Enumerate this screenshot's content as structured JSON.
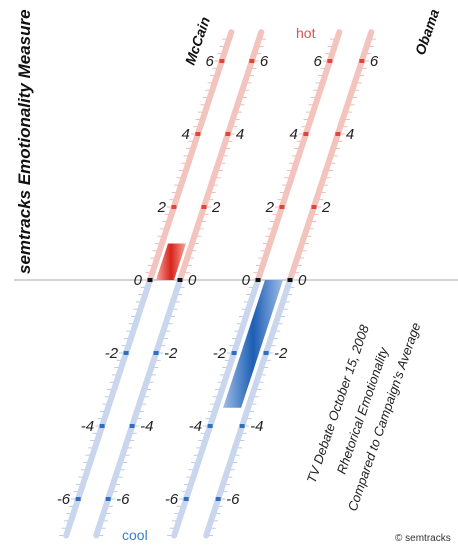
{
  "header": {
    "title": "semtracks Emotionality Measure",
    "hot_label": "hot",
    "cool_label": "cool"
  },
  "caption": {
    "line1": "TV Debate October 15, 2008",
    "line2": "Rhetorical Emotionality",
    "line3": "Compared to Campaign's Average"
  },
  "copyright": "© semtracks",
  "colors": {
    "hot": "#e0473a",
    "cool": "#2e6fc0",
    "hot_light": "#f3c3bd",
    "cool_light": "#c9d6ee"
  },
  "chart_data": {
    "type": "bar",
    "title": "semtracks Emotionality Measure",
    "categories": [
      "McCain",
      "Obama"
    ],
    "values": [
      1.0,
      -3.5
    ],
    "ylim": [
      -7,
      7
    ],
    "ticks": [
      -6,
      -4,
      -2,
      0,
      2,
      4,
      6
    ],
    "tick_labels": [
      "-6",
      "-4",
      "-2",
      "0",
      "2",
      "4",
      "6"
    ],
    "ylabel": "Rhetorical Emotionality Compared to Campaign's Average",
    "scale_top": "hot",
    "scale_bottom": "cool"
  }
}
